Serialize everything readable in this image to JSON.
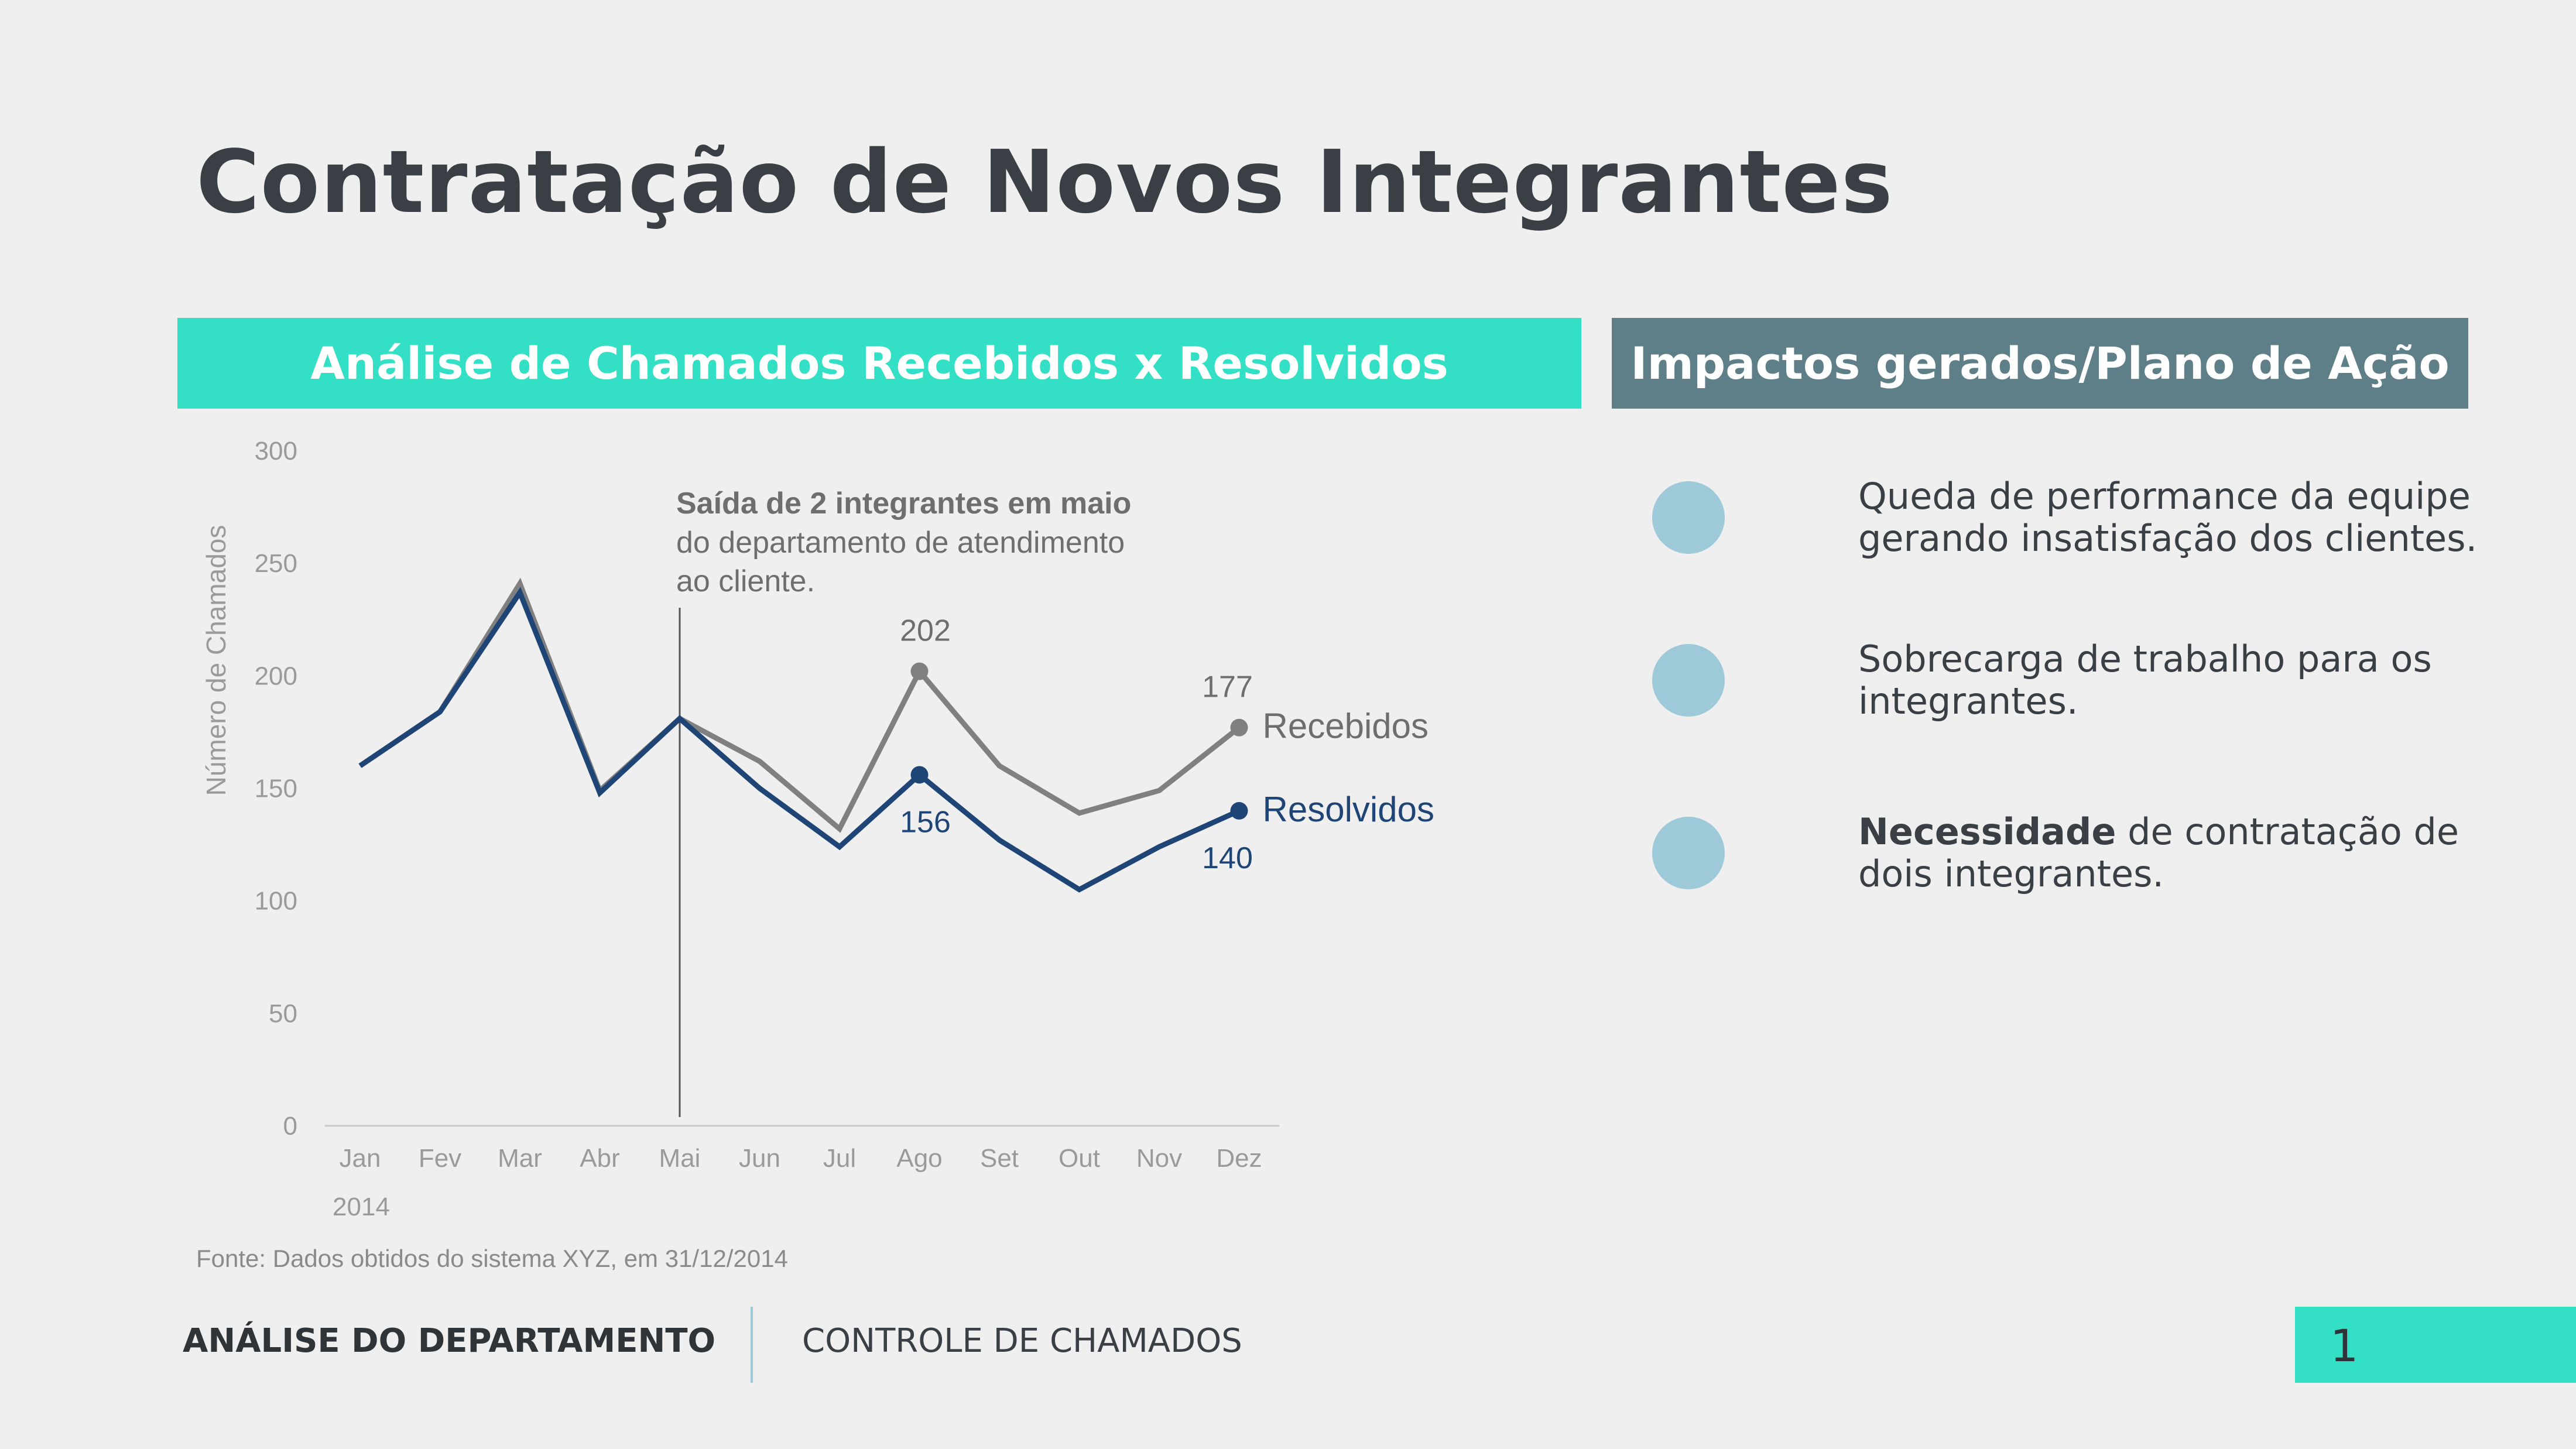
{
  "slide": {
    "title": "Contratação de Novos Integrantes",
    "left_header": "Análise de Chamados Recebidos x Resolvidos",
    "right_header": "Impactos gerados/Plano de Ação",
    "source": "Fonte: Dados obtidos do sistema XYZ, em 31/12/2014",
    "impacts": [
      {
        "bold": "",
        "text": "Queda de performance da equipe gerando insatisfação dos clientes."
      },
      {
        "bold": "",
        "text": "Sobrecarga de trabalho para os integrantes."
      },
      {
        "bold": "Necessidade",
        "text": " de contratação de dois integrantes."
      }
    ],
    "footer": {
      "section": "ANÁLISE DO DEPARTAMENTO",
      "subsection": "CONTROLE DE CHAMADOS",
      "page": "1"
    },
    "colors": {
      "accent": "#33e0c5",
      "header_right": "#5e7f88",
      "recebidos": "#808080",
      "resolvidos": "#1f4576",
      "bullet": "#9ec9d8"
    }
  },
  "chart_data": {
    "type": "line",
    "categories": [
      "Jan",
      "Fev",
      "Mar",
      "Abr",
      "Mai",
      "Jun",
      "Jul",
      "Ago",
      "Set",
      "Out",
      "Nov",
      "Dez"
    ],
    "year_label": "2014",
    "ylabel": "Número de Chamados",
    "ylim": [
      0,
      300
    ],
    "yticks": [
      0,
      50,
      100,
      150,
      200,
      250,
      300
    ],
    "grid": false,
    "series": [
      {
        "name": "Recebidos",
        "values": [
          160,
          184,
          241,
          149,
          181,
          162,
          132,
          202,
          160,
          139,
          149,
          177
        ]
      },
      {
        "name": "Resolvidos",
        "values": [
          160,
          184,
          237,
          148,
          181,
          150,
          124,
          156,
          127,
          105,
          124,
          140
        ]
      }
    ],
    "point_labels": [
      {
        "series": "Recebidos",
        "index": 7,
        "text": "202"
      },
      {
        "series": "Recebidos",
        "index": 11,
        "text": "177"
      },
      {
        "series": "Resolvidos",
        "index": 7,
        "text": "156"
      },
      {
        "series": "Resolvidos",
        "index": 11,
        "text": "140"
      }
    ],
    "annotation": {
      "at_index": 4,
      "bold": "Saída de 2 integrantes em maio",
      "lines": [
        "do departamento de atendimento",
        "ao cliente."
      ]
    }
  }
}
